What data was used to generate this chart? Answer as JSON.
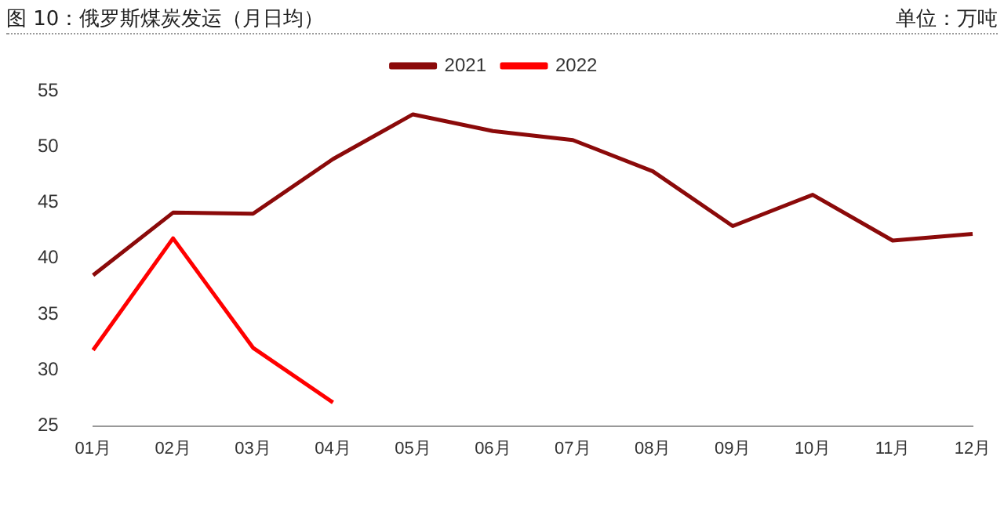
{
  "chart_data": {
    "type": "line",
    "title": "图 10：俄罗斯煤炭发运（月日均）",
    "ylabel": "单位：万吨",
    "categories": [
      "01月",
      "02月",
      "03月",
      "04月",
      "05月",
      "06月",
      "07月",
      "08月",
      "09月",
      "10月",
      "11月",
      "12月"
    ],
    "series": [
      {
        "name": "2021",
        "color": "#8b0a0a",
        "values": [
          38.5,
          44.1,
          44.0,
          48.9,
          52.9,
          51.4,
          50.6,
          47.8,
          42.9,
          45.7,
          41.6,
          42.2
        ]
      },
      {
        "name": "2022",
        "color": "#ff0000",
        "values": [
          31.8,
          41.8,
          32.0,
          27.1,
          null,
          null,
          null,
          null,
          null,
          null,
          null,
          null
        ]
      }
    ],
    "ylim": [
      25,
      55
    ],
    "yticks": [
      25,
      30,
      35,
      40,
      45,
      50,
      55
    ],
    "grid": false,
    "legend": "top",
    "marker": "none",
    "line_style": "solid"
  }
}
